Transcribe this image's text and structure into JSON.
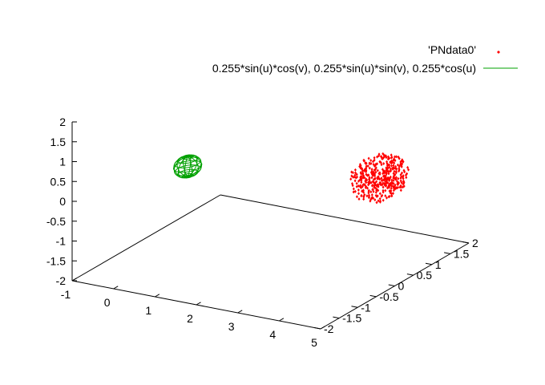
{
  "chart_data": {
    "type": "scatter3d",
    "legend_placement": "top-right",
    "legend": [
      {
        "label": "'PNdata0'",
        "style": "points",
        "color": "#ff0000"
      },
      {
        "label": "0.255*sin(u)*cos(v), 0.255*sin(u)*sin(v), 0.255*cos(u)",
        "style": "line",
        "color": "#00a000"
      }
    ],
    "axes": {
      "x": {
        "range": [
          -1,
          5
        ],
        "ticks": [
          "-1",
          "0",
          "1",
          "2",
          "3",
          "4",
          "5"
        ]
      },
      "y": {
        "range": [
          -2,
          2
        ],
        "ticks": [
          "-2",
          "-1.5",
          "-1",
          "-0.5",
          "0",
          "0.5",
          "1",
          "1.5",
          "2"
        ]
      },
      "z": {
        "range": [
          -2,
          2
        ],
        "ticks": [
          "-2",
          "-1.5",
          "-1",
          "-0.5",
          "0",
          "0.5",
          "1",
          "1.5",
          "2"
        ]
      }
    },
    "series": [
      {
        "name": "'PNdata0'",
        "kind": "point-cloud",
        "color": "#ff0000",
        "center": [
          4.45,
          0.2,
          0.5
        ],
        "spread": [
          0.55,
          0.55,
          0.55
        ],
        "count": 420
      },
      {
        "name": "0.255*sin(u)*cos(v), 0.255*sin(u)*sin(v), 0.255*cos(u)",
        "kind": "wireframe-sphere",
        "color": "#00a000",
        "center": [
          0,
          0,
          0
        ],
        "radius": 0.255
      }
    ]
  }
}
